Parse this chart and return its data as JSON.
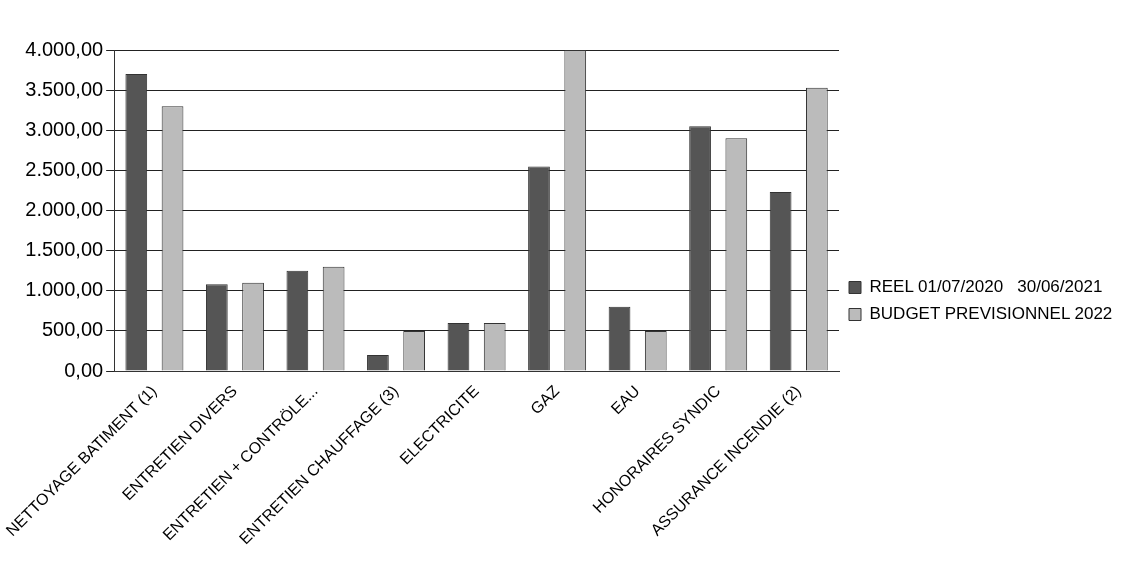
{
  "chart_data": {
    "type": "bar",
    "categories": [
      "NETTOYAGE BATIMENT (1)",
      "ENTRETIEN DIVERS",
      "ENTRETIEN + CONTRÖLE...",
      "ENTRETIEN CHAUFFAGE (3)",
      "ELECTRICITE",
      "GAZ",
      "EAU",
      "HONORAIRES SYNDIC",
      "ASSURANCE INCENDIE (2)"
    ],
    "series": [
      {
        "name": "REEL 01/07/2020   30/06/2021",
        "color": "#555555",
        "values": [
          3700,
          1080,
          1250,
          200,
          600,
          2550,
          800,
          3050,
          2230
        ]
      },
      {
        "name": "BUDGET PREVISIONNEL 2022",
        "color": "#bbbbbb",
        "values": [
          3300,
          1100,
          1300,
          500,
          600,
          4000,
          500,
          2900,
          3530
        ]
      }
    ],
    "ylim": [
      0,
      4000
    ],
    "yticks": [
      {
        "value": 0,
        "label": "0,00"
      },
      {
        "value": 500,
        "label": "500,00"
      },
      {
        "value": 1000,
        "label": "1.000,00"
      },
      {
        "value": 1500,
        "label": "1.500,00"
      },
      {
        "value": 2000,
        "label": "2.000,00"
      },
      {
        "value": 2500,
        "label": "2.500,00"
      },
      {
        "value": 3000,
        "label": "3.000,00"
      },
      {
        "value": 3500,
        "label": "3.500,00"
      },
      {
        "value": 4000,
        "label": "4.000,00"
      }
    ],
    "grid": "y",
    "legend": "right"
  }
}
